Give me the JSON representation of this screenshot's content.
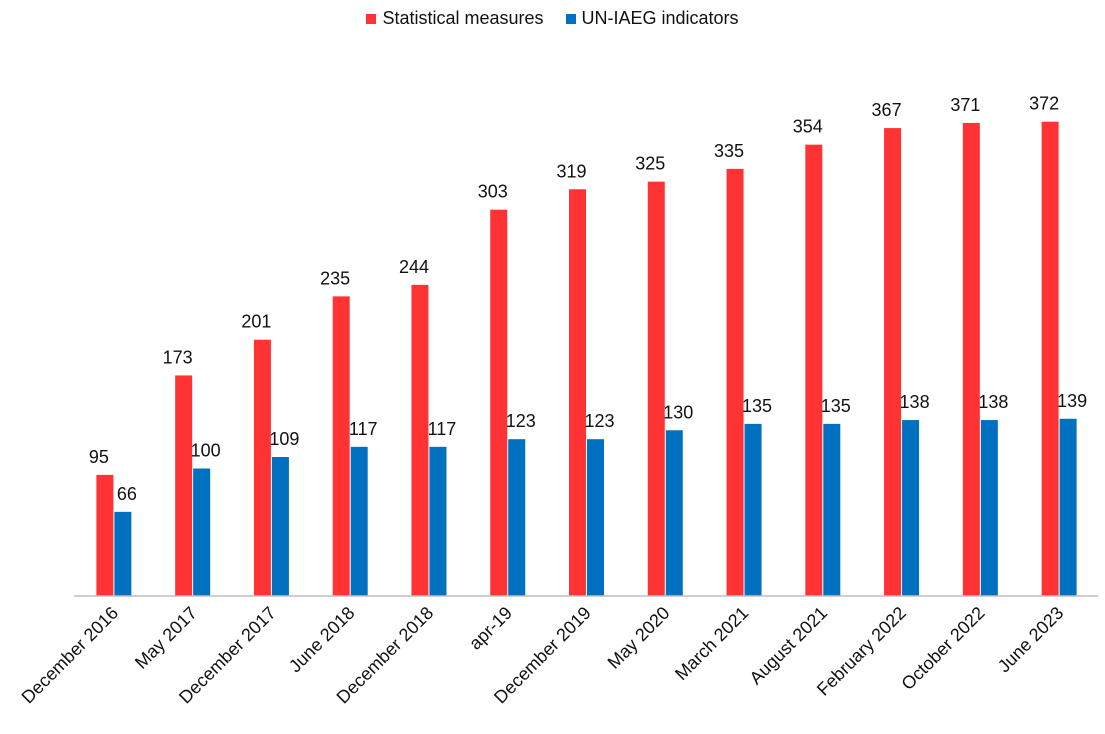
{
  "chart_data": {
    "type": "bar",
    "categories": [
      "December 2016",
      "May 2017",
      "December 2017",
      "June 2018",
      "December 2018",
      "apr-19",
      "December 2019",
      "May 2020",
      "March 2021",
      "August 2021",
      "February 2022",
      "October 2022",
      "June 2023"
    ],
    "series": [
      {
        "name": "Statistical measures",
        "color": "#ff3333",
        "values": [
          95,
          173,
          201,
          235,
          244,
          303,
          319,
          325,
          335,
          354,
          367,
          371,
          372
        ]
      },
      {
        "name": "UN-IAEG indicators",
        "color": "#0070c0",
        "values": [
          66,
          100,
          109,
          117,
          117,
          123,
          123,
          130,
          135,
          135,
          138,
          138,
          139
        ]
      }
    ],
    "ylim": [
      0,
      400
    ],
    "legend_position": "top-center",
    "grid": false,
    "data_labels": true
  }
}
